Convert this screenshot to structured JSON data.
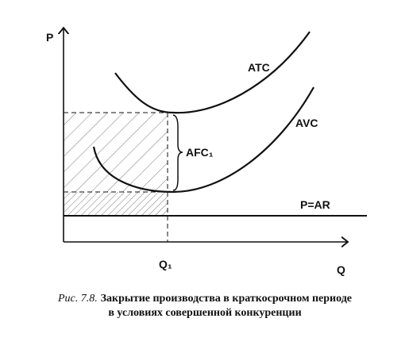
{
  "axes": {
    "y_label": "P",
    "x_label": "Q"
  },
  "curves": {
    "atc": "ATC",
    "avc": "AVC",
    "price": "P=AR"
  },
  "annotations": {
    "afc": "AFC₁",
    "quantity": "Q₁"
  },
  "caption": {
    "figure_number": "Рис. 7.8.",
    "line1": "Закрытие производства в краткосрочном периоде",
    "line2": "в условиях совершенной конкуренции"
  }
}
